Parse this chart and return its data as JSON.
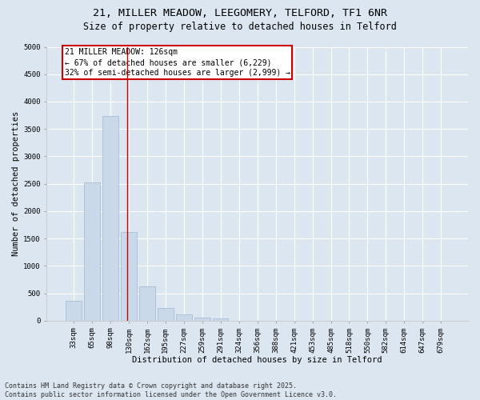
{
  "title_line1": "21, MILLER MEADOW, LEEGOMERY, TELFORD, TF1 6NR",
  "title_line2": "Size of property relative to detached houses in Telford",
  "xlabel": "Distribution of detached houses by size in Telford",
  "ylabel": "Number of detached properties",
  "categories": [
    "33sqm",
    "65sqm",
    "98sqm",
    "130sqm",
    "162sqm",
    "195sqm",
    "227sqm",
    "259sqm",
    "291sqm",
    "324sqm",
    "356sqm",
    "388sqm",
    "421sqm",
    "453sqm",
    "485sqm",
    "518sqm",
    "550sqm",
    "582sqm",
    "614sqm",
    "647sqm",
    "679sqm"
  ],
  "values": [
    370,
    2530,
    3730,
    1620,
    620,
    230,
    120,
    60,
    50,
    0,
    0,
    0,
    0,
    0,
    0,
    0,
    0,
    0,
    0,
    0,
    0
  ],
  "bar_color": "#c9d9ea",
  "bar_edgecolor": "#a0b8d0",
  "vline_color": "#cc0000",
  "vline_x_index": 3,
  "annotation_text": "21 MILLER MEADOW: 126sqm\n← 67% of detached houses are smaller (6,229)\n32% of semi-detached houses are larger (2,999) →",
  "annotation_box_edgecolor": "#cc0000",
  "ylim": [
    0,
    5000
  ],
  "yticks": [
    0,
    500,
    1000,
    1500,
    2000,
    2500,
    3000,
    3500,
    4000,
    4500,
    5000
  ],
  "bg_color": "#dce6f0",
  "plot_bg_color": "#dce6f0",
  "footer_line1": "Contains HM Land Registry data © Crown copyright and database right 2025.",
  "footer_line2": "Contains public sector information licensed under the Open Government Licence v3.0.",
  "title_fontsize": 9.5,
  "subtitle_fontsize": 8.5,
  "axis_label_fontsize": 7.5,
  "tick_fontsize": 6.5,
  "annotation_fontsize": 7,
  "footer_fontsize": 6
}
